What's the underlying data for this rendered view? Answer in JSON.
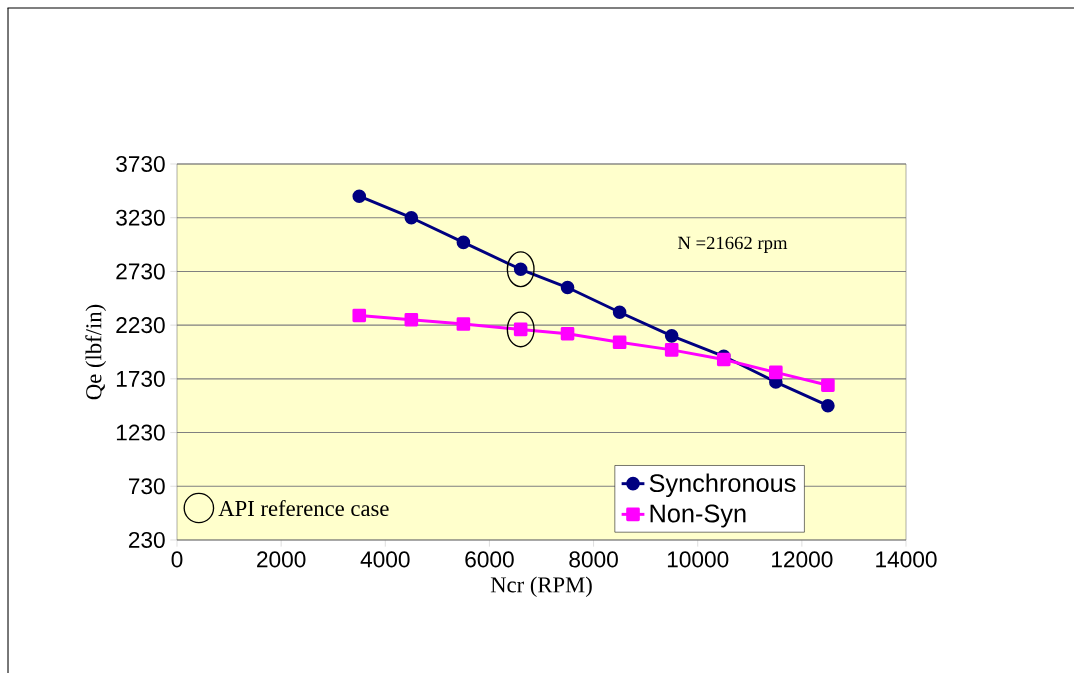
{
  "chart_data": {
    "type": "line",
    "xlabel": "Ncr (RPM)",
    "ylabel": "Qe (lbf/in)",
    "x": [
      3500,
      4500,
      5500,
      6600,
      7500,
      8500,
      9500,
      10500,
      11500,
      12500
    ],
    "series": [
      {
        "name": "Synchronous",
        "color": "#000080",
        "marker": "circle",
        "values": [
          3430,
          3230,
          3000,
          2750,
          2580,
          2350,
          2130,
          1940,
          1700,
          1480
        ]
      },
      {
        "name": "Non-Syn",
        "color": "#ff00ff",
        "marker": "square",
        "values": [
          2320,
          2280,
          2240,
          2190,
          2150,
          2070,
          2000,
          1910,
          1790,
          1670
        ]
      }
    ],
    "xlim": [
      0,
      14000
    ],
    "ylim": [
      230,
      3730
    ],
    "xticks": [
      0,
      2000,
      4000,
      6000,
      8000,
      10000,
      12000,
      14000
    ],
    "yticks": [
      230,
      730,
      1230,
      1730,
      2230,
      2730,
      3230,
      3730
    ],
    "grid": "y",
    "legend": "bottom right",
    "line_style": "solid",
    "annotations": [
      "N =21662 rpm",
      "API reference case"
    ]
  }
}
